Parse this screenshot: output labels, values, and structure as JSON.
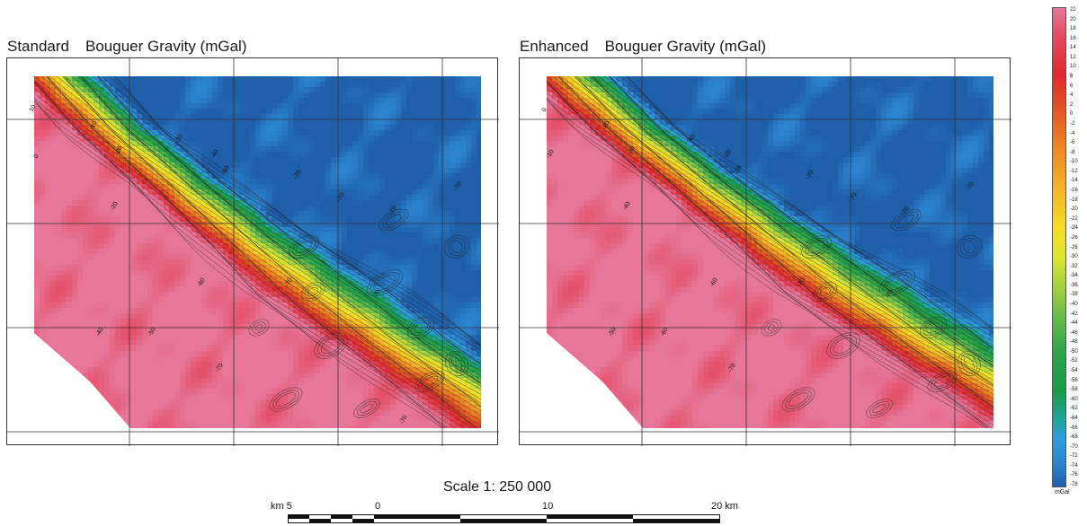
{
  "panels": [
    {
      "label": "Standard",
      "title": "Bouguer Gravity (mGal)",
      "contour_labels": [
        "10",
        "0",
        "-10",
        "-20",
        "-30",
        "-40",
        "-20",
        "-40",
        "-50",
        "-60",
        "-60",
        "-70",
        "-70",
        "-70",
        "-70",
        "-70",
        "-70",
        "-70",
        "-70"
      ]
    },
    {
      "label": "Enhanced",
      "title": "Bouguer Gravity (mGal)",
      "contour_labels": [
        "0",
        "-10",
        "-20",
        "-30",
        "-40",
        "-20",
        "-40",
        "-50",
        "-60",
        "-60",
        "-70",
        "-70",
        "-70",
        "-70",
        "-70",
        "-70",
        "-70",
        "-70"
      ]
    }
  ],
  "legend": {
    "unit": "mGal",
    "values": [
      "22",
      "20",
      "18",
      "16",
      "14",
      "12",
      "10",
      "8",
      "6",
      "4",
      "2",
      "0",
      "-2",
      "-4",
      "-6",
      "-8",
      "-10",
      "-12",
      "-14",
      "-16",
      "-18",
      "-20",
      "-22",
      "-24",
      "-26",
      "-28",
      "-30",
      "-32",
      "-34",
      "-36",
      "-38",
      "-40",
      "-42",
      "-44",
      "-46",
      "-48",
      "-50",
      "-52",
      "-54",
      "-56",
      "-58",
      "-60",
      "-62",
      "-64",
      "-66",
      "-68",
      "-70",
      "-72",
      "-74",
      "-76",
      "-78"
    ],
    "color_stops": [
      {
        "value": 22,
        "color": "#e6779a"
      },
      {
        "value": 16,
        "color": "#e44a62"
      },
      {
        "value": 8,
        "color": "#dd2a2e"
      },
      {
        "value": 0,
        "color": "#e25a25"
      },
      {
        "value": -8,
        "color": "#ef8a24"
      },
      {
        "value": -16,
        "color": "#f4b62a"
      },
      {
        "value": -24,
        "color": "#f5dc25"
      },
      {
        "value": -30,
        "color": "#dde631"
      },
      {
        "value": -36,
        "color": "#a8d240"
      },
      {
        "value": -42,
        "color": "#6cbd4a"
      },
      {
        "value": -50,
        "color": "#2ea549"
      },
      {
        "value": -58,
        "color": "#1a9a48"
      },
      {
        "value": -64,
        "color": "#21a49a"
      },
      {
        "value": -68,
        "color": "#2f9ee0"
      },
      {
        "value": -74,
        "color": "#2a7fcb"
      },
      {
        "value": -78,
        "color": "#1f5ea8"
      }
    ]
  },
  "scale": {
    "title": "Scale 1: 250 000",
    "ticks": [
      "km 5",
      "0",
      "10",
      "20 km"
    ]
  }
}
